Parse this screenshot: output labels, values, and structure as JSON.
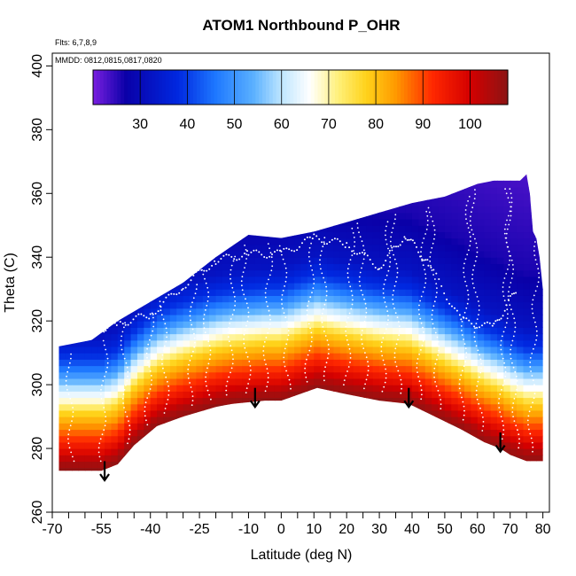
{
  "chart_data": {
    "type": "heatmap",
    "title": "ATOM1 Northbound P_OHR",
    "flights_note": "Flts: 6,7,8,9",
    "dates_note": "MMDD: 0812,0815,0817,0820",
    "xlabel": "Latitude (deg N)",
    "ylabel": "Theta (C)",
    "xlim": [
      -70,
      82
    ],
    "ylim": [
      260,
      404
    ],
    "x_ticks": [
      -70,
      -55,
      -40,
      -25,
      -10,
      0,
      10,
      20,
      30,
      40,
      50,
      60,
      70,
      80
    ],
    "x_tick_labels": [
      "-70",
      "-55",
      "-40",
      "-25",
      "-10",
      "0",
      "10",
      "20",
      "30",
      "40",
      "50",
      "60",
      "70",
      "80"
    ],
    "x_minor_ticks": [
      -65,
      -60,
      -50,
      -45,
      -35,
      -30,
      -20,
      -15,
      -5,
      5,
      15,
      25,
      35,
      45,
      55,
      65,
      75
    ],
    "y_ticks": [
      260,
      280,
      300,
      320,
      340,
      360,
      380,
      400
    ],
    "y_tick_labels": [
      "260",
      "280",
      "300",
      "320",
      "340",
      "360",
      "380",
      "400"
    ],
    "colorbar": {
      "range": [
        20,
        108
      ],
      "ticks": [
        30,
        40,
        50,
        60,
        70,
        80,
        90,
        100
      ],
      "tick_labels": [
        "30",
        "40",
        "50",
        "60",
        "70",
        "80",
        "90",
        "100"
      ],
      "stops": [
        {
          "v": 20,
          "c": "#7a1fe0"
        },
        {
          "v": 27,
          "c": "#0a00a8"
        },
        {
          "v": 38,
          "c": "#0028e0"
        },
        {
          "v": 46,
          "c": "#1e78ff"
        },
        {
          "v": 54,
          "c": "#5ab0ff"
        },
        {
          "v": 60,
          "c": "#bfe6ff"
        },
        {
          "v": 66,
          "c": "#ffffff"
        },
        {
          "v": 72,
          "c": "#fff07a"
        },
        {
          "v": 78,
          "c": "#ffd21a"
        },
        {
          "v": 84,
          "c": "#ff9c00"
        },
        {
          "v": 92,
          "c": "#ff2800"
        },
        {
          "v": 100,
          "c": "#d40000"
        },
        {
          "v": 108,
          "c": "#8c1414"
        }
      ]
    },
    "top_boundary": [
      [
        -68,
        312
      ],
      [
        -58,
        314
      ],
      [
        -50,
        320
      ],
      [
        -40,
        326
      ],
      [
        -30,
        332
      ],
      [
        -20,
        340
      ],
      [
        -10,
        347
      ],
      [
        0,
        346
      ],
      [
        10,
        348
      ],
      [
        20,
        351
      ],
      [
        30,
        354
      ],
      [
        40,
        357
      ],
      [
        50,
        359
      ],
      [
        60,
        363
      ],
      [
        65,
        364
      ],
      [
        73,
        364
      ],
      [
        75,
        366
      ],
      [
        76,
        360
      ],
      [
        77,
        348
      ],
      [
        78,
        346
      ],
      [
        79,
        340
      ],
      [
        80,
        330
      ],
      [
        80,
        292
      ]
    ],
    "bottom_boundary": [
      [
        -68,
        273
      ],
      [
        -55,
        273
      ],
      [
        -50,
        275
      ],
      [
        -45,
        281
      ],
      [
        -38,
        287
      ],
      [
        -30,
        290
      ],
      [
        -20,
        293
      ],
      [
        -15,
        294
      ],
      [
        -5,
        295
      ],
      [
        0,
        295
      ],
      [
        11,
        299
      ],
      [
        20,
        297
      ],
      [
        30,
        295
      ],
      [
        39,
        294
      ],
      [
        45,
        291
      ],
      [
        55,
        286
      ],
      [
        62,
        282
      ],
      [
        67,
        280
      ],
      [
        70,
        278
      ],
      [
        75,
        276
      ],
      [
        80,
        276
      ]
    ],
    "contour_levels_theta_offset": [
      {
        "value": 104,
        "offset": 3
      },
      {
        "value": 98,
        "offset": 6
      },
      {
        "value": 93,
        "offset": 9
      },
      {
        "value": 88,
        "offset": 12
      },
      {
        "value": 83,
        "offset": 15
      },
      {
        "value": 78,
        "offset": 18
      },
      {
        "value": 73,
        "offset": 20
      },
      {
        "value": 68,
        "offset": 22
      },
      {
        "value": 62,
        "offset": 25
      },
      {
        "value": 55,
        "offset": 28
      },
      {
        "value": 48,
        "offset": 31
      },
      {
        "value": 40,
        "offset": 35
      },
      {
        "value": 32,
        "offset": 42
      },
      {
        "value": 26,
        "offset": 60
      }
    ],
    "tropopause_like_points": [
      [
        -57,
        317
      ],
      [
        -50,
        319
      ],
      [
        -40,
        322
      ],
      [
        -30,
        331
      ],
      [
        -20,
        339
      ],
      [
        -10,
        341
      ],
      [
        0,
        341
      ],
      [
        10,
        346
      ],
      [
        20,
        344
      ],
      [
        30,
        337
      ],
      [
        38,
        347
      ],
      [
        45,
        338
      ],
      [
        55,
        320
      ],
      [
        65,
        318
      ],
      [
        72,
        330
      ]
    ],
    "aircraft_profile_lats": [
      -64,
      -55,
      -47,
      -41,
      -35,
      -28,
      -22,
      -16,
      -10,
      -5,
      2,
      8,
      14,
      20,
      26,
      31,
      36,
      42,
      48,
      55,
      61,
      67,
      72,
      76
    ],
    "arrows": [
      {
        "lat": -54,
        "theta_top": 276,
        "theta_bottom": 270
      },
      {
        "lat": -8,
        "theta_top": 299,
        "theta_bottom": 293
      },
      {
        "lat": 39,
        "theta_top": 299,
        "theta_bottom": 293
      },
      {
        "lat": 67,
        "theta_top": 285,
        "theta_bottom": 279
      }
    ]
  }
}
